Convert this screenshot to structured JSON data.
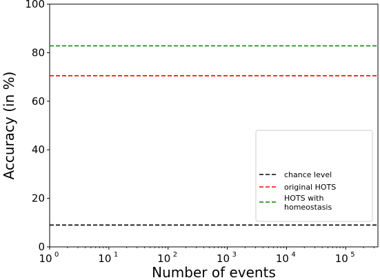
{
  "chart_data": {
    "type": "line",
    "title": "",
    "xlabel": "Number of events",
    "ylabel": "Accuracy (in %)",
    "x_scale": "log",
    "xlim": [
      1,
      350000
    ],
    "ylim": [
      0,
      100
    ],
    "y_ticks": [
      0,
      20,
      40,
      60,
      80,
      100
    ],
    "x_ticks": [
      {
        "value": 1,
        "base": "10",
        "exp": "0"
      },
      {
        "value": 10,
        "base": "10",
        "exp": "1"
      },
      {
        "value": 100,
        "base": "10",
        "exp": "2"
      },
      {
        "value": 1000,
        "base": "10",
        "exp": "3"
      },
      {
        "value": 10000,
        "base": "10",
        "exp": "4"
      },
      {
        "value": 100000,
        "base": "10",
        "exp": "5"
      }
    ],
    "grid": false,
    "legend_position": "lower-right",
    "series": [
      {
        "name": "chance level",
        "color": "#000000",
        "style": "dashed",
        "x": [
          1,
          350000
        ],
        "y": [
          9,
          9
        ]
      },
      {
        "name": "original HOTS",
        "color": "#ff0000",
        "style": "dashed",
        "x": [
          1,
          350000
        ],
        "y": [
          70.5,
          70.5
        ]
      },
      {
        "name": "HOTS with homeostasis",
        "legend_lines": [
          "HOTS with",
          "homeostasis"
        ],
        "color": "#008000",
        "style": "dashed",
        "x": [
          1,
          350000
        ],
        "y": [
          82.8,
          82.8
        ]
      }
    ]
  }
}
